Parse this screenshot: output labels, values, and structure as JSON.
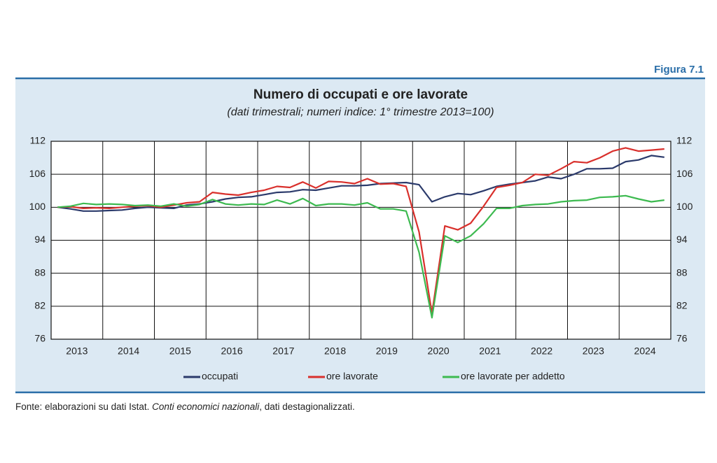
{
  "figure_label": "Figura 7.1",
  "chart_data": {
    "type": "line",
    "title": "Numero di occupati e ore lavorate",
    "subtitle": "(dati trimestrali; numeri indice: 1° trimestre 2013=100)",
    "categories": [
      "2013",
      null,
      null,
      null,
      "2014",
      null,
      null,
      null,
      "2015",
      null,
      null,
      null,
      "2016",
      null,
      null,
      null,
      "2017",
      null,
      null,
      null,
      "2018",
      null,
      null,
      null,
      "2019",
      null,
      null,
      null,
      "2020",
      null,
      null,
      null,
      "2021",
      null,
      null,
      null,
      "2022",
      null,
      null,
      null,
      "2023",
      null,
      null,
      null,
      "2024",
      null,
      null,
      null
    ],
    "series": [
      {
        "name": "occupati",
        "color": "#2b3a6b",
        "values": [
          100,
          99.7,
          99.3,
          99.3,
          99.4,
          99.5,
          99.8,
          100.0,
          99.9,
          99.8,
          100.4,
          100.6,
          101.0,
          101.5,
          101.8,
          101.9,
          102.3,
          102.7,
          102.8,
          103.2,
          103.1,
          103.5,
          103.9,
          103.9,
          104.0,
          104.3,
          104.4,
          104.5,
          104.1,
          101.0,
          101.9,
          102.5,
          102.3,
          103.0,
          103.8,
          104.2,
          104.5,
          104.8,
          105.5,
          105.2,
          106.0,
          107.0,
          107.0,
          107.1,
          108.3,
          108.6,
          109.4,
          109.1
        ]
      },
      {
        "name": "ore lavorate",
        "color": "#d9302c",
        "values": [
          100,
          100.1,
          99.8,
          99.9,
          99.8,
          100.0,
          100.2,
          100.3,
          100.0,
          100.4,
          100.8,
          101.0,
          102.7,
          102.4,
          102.2,
          102.7,
          103.1,
          103.8,
          103.6,
          104.6,
          103.5,
          104.7,
          104.6,
          104.3,
          105.2,
          104.2,
          104.3,
          103.8,
          95.5,
          80.7,
          96.6,
          95.9,
          97.1,
          100.2,
          103.6,
          104.0,
          104.5,
          106.0,
          105.8,
          107.0,
          108.3,
          108.1,
          109.0,
          110.2,
          110.8,
          110.2,
          110.4,
          110.6
        ]
      },
      {
        "name": "ore lavorate per addetto",
        "color": "#3dba50",
        "values": [
          100,
          100.2,
          100.7,
          100.5,
          100.6,
          100.5,
          100.3,
          100.4,
          100.2,
          100.6,
          100.2,
          100.5,
          101.4,
          100.6,
          100.4,
          100.6,
          100.5,
          101.3,
          100.6,
          101.6,
          100.3,
          100.6,
          100.6,
          100.4,
          100.8,
          99.7,
          99.7,
          99.3,
          91.8,
          79.9,
          94.8,
          93.6,
          94.8,
          97.0,
          99.8,
          99.8,
          100.3,
          100.5,
          100.6,
          101.0,
          101.2,
          101.3,
          101.8,
          101.9,
          102.1,
          101.5,
          101.0,
          101.3
        ]
      }
    ],
    "ylim": [
      76,
      112
    ],
    "yticks": [
      76,
      82,
      88,
      94,
      100,
      106,
      112
    ],
    "y2lim": [
      76,
      112
    ],
    "y2ticks": [
      76,
      82,
      88,
      94,
      100,
      106,
      112
    ],
    "grid": true,
    "legend": "bottom"
  },
  "source": {
    "prefix": "Fonte: elaborazioni su dati Istat. ",
    "italic": "Conti economici nazionali",
    "suffix": ", dati destagionalizzati."
  }
}
